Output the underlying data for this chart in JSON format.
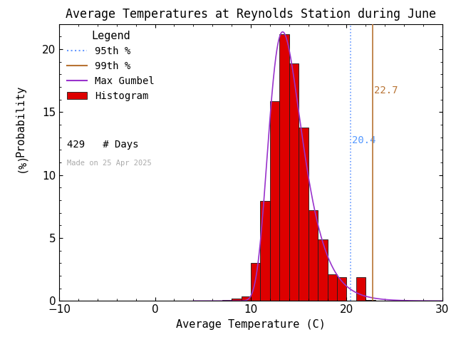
{
  "title": "Average Temperatures at Reynolds Station during June",
  "xlabel": "Average Temperature (C)",
  "ylabel_top": "Probability",
  "ylabel_bot": "(%)",
  "xlim": [
    -10,
    30
  ],
  "ylim": [
    0,
    22
  ],
  "xticks": [
    -10,
    0,
    10,
    20,
    30
  ],
  "yticks": [
    0,
    5,
    10,
    15,
    20
  ],
  "bar_edges": [
    7.0,
    8.0,
    9.0,
    10.0,
    11.0,
    12.0,
    13.0,
    14.0,
    15.0,
    16.0,
    17.0,
    18.0,
    19.0,
    20.0,
    21.0,
    22.0,
    23.0
  ],
  "bar_heights": [
    0.07,
    0.21,
    0.35,
    3.03,
    7.93,
    15.85,
    21.21,
    18.88,
    13.75,
    7.23,
    4.9,
    2.1,
    1.87,
    0.0,
    1.87,
    0.07,
    0.0
  ],
  "bar_color": "#dd0000",
  "bar_edgecolor": "#1a1a1a",
  "percentile_95": 20.4,
  "percentile_99": 22.7,
  "percentile_95_color": "#6699ff",
  "percentile_99_color": "#b87333",
  "percentile_95_label_color": "#5599ff",
  "percentile_99_label_color": "#b87333",
  "gumbel_color": "#9933cc",
  "gumbel_mu": 12.3,
  "gumbel_beta": 1.85,
  "n_days": 429,
  "made_on": "Made on 25 Apr 2025",
  "background_color": "#ffffff",
  "title_fontsize": 12,
  "axis_fontsize": 11,
  "tick_fontsize": 11,
  "legend_fontsize": 10,
  "annot_fontsize": 10
}
